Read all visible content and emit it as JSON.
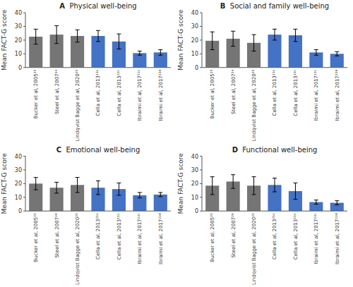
{
  "chart_data": [
    {
      "type": "bar",
      "title": "A  Physical well-being",
      "ylabel": "Mean FACT-G score",
      "categories": [
        "Bucker et al, 2005²⁵",
        "Steel et al, 2007²⁴",
        "Lindqvist Bagge et al, 2020²⁵",
        "Cella et al, 2013¹¹ᵃ",
        "Cella et al, 2013¹¹ᵇ",
        "Ibraimi et al, 2017²²ᶜ",
        "Ibraimi et al, 2017²²ᵈ"
      ],
      "values": [
        22.5,
        24.0,
        23.0,
        23.0,
        19.0,
        10.5,
        11.0
      ],
      "errors": [
        5.5,
        6.5,
        4.5,
        4.0,
        5.5,
        1.5,
        2.0
      ],
      "colors": [
        "#757575",
        "#757575",
        "#757575",
        "#4472C4",
        "#4472C4",
        "#4472C4",
        "#4472C4"
      ],
      "ylim": [
        0,
        40
      ],
      "yticks": [
        0,
        10,
        20,
        30,
        40
      ],
      "grid": false
    },
    {
      "type": "bar",
      "title": "B  Social and family well-being",
      "ylabel": "Mean FACT-G score",
      "categories": [
        "Bucker et al, 2005²⁵",
        "Steel et al, 2007²⁴",
        "Lindqvist Bagge et al, 2020²⁵",
        "Cella et al, 2013¹¹ᵃ",
        "Cella et al, 2013¹¹ᵇ",
        "Ibraimi et al, 2017²²ᶜ",
        "Ibraimi et al, 2017²²ᵈ"
      ],
      "values": [
        19.5,
        21.0,
        18.0,
        24.0,
        23.5,
        11.0,
        10.0
      ],
      "errors": [
        6.5,
        5.5,
        6.0,
        4.0,
        4.5,
        2.0,
        1.5
      ],
      "colors": [
        "#757575",
        "#757575",
        "#757575",
        "#4472C4",
        "#4472C4",
        "#4472C4",
        "#4472C4"
      ],
      "ylim": [
        0,
        40
      ],
      "yticks": [
        0,
        10,
        20,
        30,
        40
      ],
      "grid": false
    },
    {
      "type": "bar",
      "title": "C  Emotional well-being",
      "ylabel": "Mean FACT-G score",
      "categories": [
        "Bucker et al, 2005²⁵",
        "Steel et al, 2007²⁴",
        "Lindqvist Bagge et al, 2020²⁵",
        "Cella et al, 2013¹¹ᵃ",
        "Cella et al, 2013¹¹ᵇ",
        "Ibraimi et al, 2017²²ᶜ",
        "Ibraimi et al, 2017²²ᵈ"
      ],
      "values": [
        20.0,
        17.0,
        19.0,
        17.0,
        16.0,
        11.5,
        12.0
      ],
      "errors": [
        4.5,
        4.0,
        5.5,
        5.0,
        4.5,
        2.0,
        1.5
      ],
      "colors": [
        "#757575",
        "#757575",
        "#757575",
        "#4472C4",
        "#4472C4",
        "#4472C4",
        "#4472C4"
      ],
      "ylim": [
        0,
        40
      ],
      "yticks": [
        0,
        10,
        20,
        30,
        40
      ],
      "grid": false
    },
    {
      "type": "bar",
      "title": "D  Functional well-being",
      "ylabel": "Mean FACT-G score",
      "categories": [
        "Bucker et al, 2005²⁵",
        "Steel et al, 2007²⁴",
        "Lindqvist Bagge et al, 2020²⁵",
        "Cella et al, 2013¹¹ᵃ",
        "Cella et al, 2013¹¹ᵇ",
        "Ibraimi et al, 2017²²ᶜ",
        "Ibraimi et al, 2017²²ᵈ"
      ],
      "values": [
        18.5,
        21.5,
        18.5,
        19.0,
        14.5,
        6.5,
        6.0
      ],
      "errors": [
        6.5,
        5.0,
        6.5,
        5.0,
        6.0,
        1.5,
        1.5
      ],
      "colors": [
        "#757575",
        "#757575",
        "#757575",
        "#4472C4",
        "#4472C4",
        "#4472C4",
        "#4472C4"
      ],
      "ylim": [
        0,
        40
      ],
      "yticks": [
        0,
        10,
        20,
        30,
        40
      ],
      "grid": false
    }
  ]
}
